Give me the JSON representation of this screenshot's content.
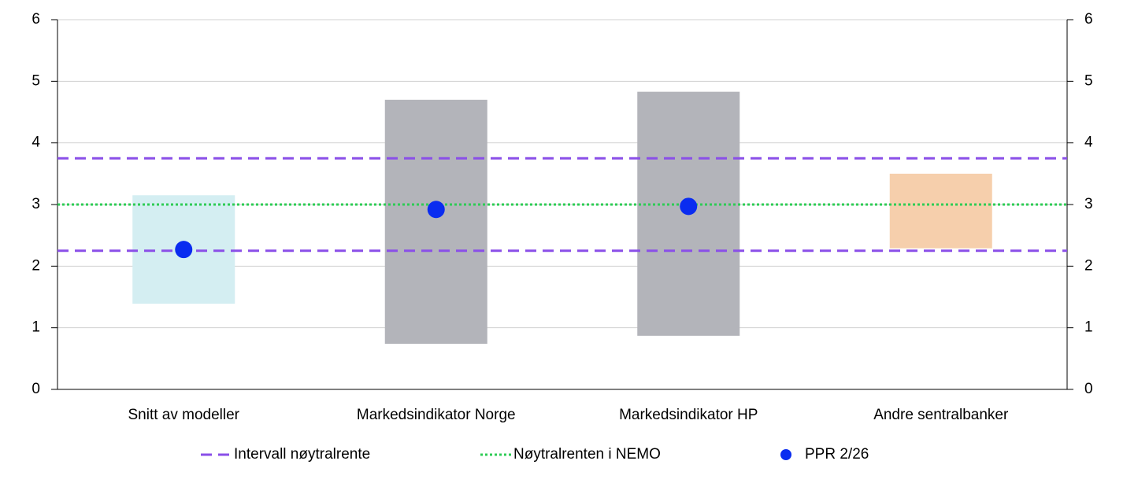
{
  "chart_data": {
    "type": "range",
    "categories": [
      "Snitt av modeller",
      "Markedsindikator Norge",
      "Markedsindikator HP",
      "Andre sentralbanker"
    ],
    "ranges": {
      "low": [
        1.39,
        0.74,
        0.87,
        2.29
      ],
      "high": [
        3.15,
        4.7,
        4.83,
        3.5
      ],
      "colors": [
        "#d4eef2",
        "#b3b4ba",
        "#b3b4ba",
        "#f6cfac"
      ]
    },
    "reference_lines": [
      {
        "name": "Intervall nøytralrente",
        "color": "#8a4fe8",
        "style": "dashed",
        "values": [
          2.25,
          3.75
        ]
      },
      {
        "name": "Nøytralrenten i NEMO",
        "color": "#2ecc55",
        "style": "dotted",
        "values": [
          3
        ]
      }
    ],
    "series": [
      {
        "name": "PPR 2/26",
        "color": "#0a2cf0",
        "values": [
          2.27,
          2.92,
          2.97,
          null
        ]
      }
    ],
    "ylim": [
      0,
      6
    ],
    "yticks": [
      0,
      1,
      2,
      3,
      4,
      5,
      6
    ],
    "y2lim": [
      0,
      6
    ],
    "y2ticks": [
      0,
      1,
      2,
      3,
      4,
      5,
      6
    ],
    "grid": true
  }
}
